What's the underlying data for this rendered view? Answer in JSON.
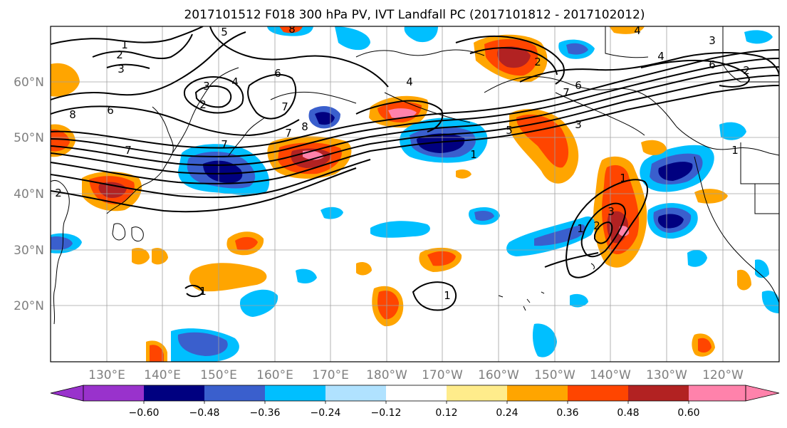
{
  "title": "2017101512 F018 300 hPa PV, IVT Landfall PC (2017101812 - 2017102012)",
  "lat_labels": [
    "60°N",
    "50°N",
    "40°N",
    "30°N",
    "20°N"
  ],
  "lon_labels": [
    "130°E",
    "140°E",
    "150°E",
    "160°E",
    "170°E",
    "180°W",
    "170°W",
    "160°W",
    "150°W",
    "140°W",
    "130°W",
    "120°W"
  ],
  "colorbar": {
    "tick_labels": [
      "−0.60",
      "−0.48",
      "−0.36",
      "−0.24",
      "−0.12",
      "0.12",
      "0.24",
      "0.36",
      "0.48",
      "0.60"
    ],
    "colors": [
      "#9932cc",
      "#000080",
      "#3a5fcd",
      "#00bfff",
      "#b0e2ff",
      "#ffffff",
      "#ffec8b",
      "#ffa500",
      "#ff4500",
      "#b22222",
      "#ff82ab"
    ]
  },
  "contour_labels": [
    "1",
    "2",
    "3",
    "4",
    "5",
    "6",
    "7",
    "8"
  ],
  "fill_colors": {
    "neg_strong": "#000080",
    "neg_mid": "#3a5fcd",
    "neg_light": "#00bfff",
    "neg_pale": "#b0e2ff",
    "pos_pale": "#ffec8b",
    "pos_light": "#ffa500",
    "pos_mid": "#ff4500",
    "pos_strong": "#b22222",
    "pos_max": "#ff82ab"
  }
}
